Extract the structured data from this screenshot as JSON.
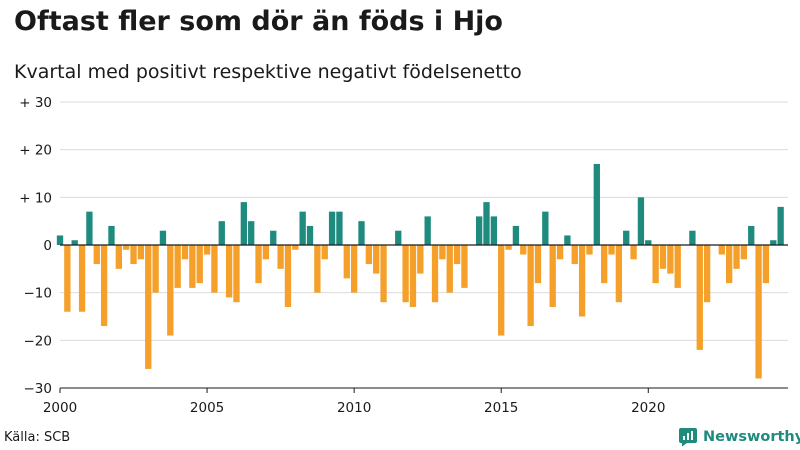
{
  "chart_data": {
    "type": "bar",
    "title": "Oftast fler som dör än föds i Hjo",
    "subtitle": "Kvartal med positivt respektive negativt födelsenetto",
    "xlabel": "",
    "ylabel": "",
    "ylim": [
      -30,
      30
    ],
    "y_ticks": [
      30,
      20,
      10,
      0,
      -10,
      -20,
      -30
    ],
    "y_tick_labels": [
      "+ 30",
      "+ 20",
      "+ 10",
      "0",
      "−10",
      "−20",
      "−30"
    ],
    "x_ticks": [
      2000,
      2005,
      2010,
      2015,
      2020
    ],
    "x_tick_labels": [
      "2000",
      "2005",
      "2010",
      "2015",
      "2020"
    ],
    "x_range": [
      2000,
      2024.75
    ],
    "start_year": 2000,
    "positive_color": "#1f8b7f",
    "negative_color": "#f4a02a",
    "grid": true,
    "values": [
      2,
      -14,
      1,
      -14,
      7,
      -4,
      -17,
      4,
      -5,
      -1,
      -4,
      -3,
      -26,
      -10,
      3,
      -19,
      -9,
      -3,
      -9,
      -8,
      -2,
      -10,
      5,
      -11,
      -12,
      9,
      5,
      -8,
      -3,
      3,
      -5,
      -13,
      -1,
      7,
      4,
      -10,
      -3,
      7,
      7,
      -7,
      -10,
      5,
      -4,
      -6,
      -12,
      0,
      3,
      -12,
      -13,
      -6,
      6,
      -12,
      -3,
      -10,
      -4,
      -9,
      0,
      6,
      9,
      6,
      -19,
      -1,
      4,
      -2,
      -17,
      -8,
      7,
      -13,
      -3,
      2,
      -4,
      -15,
      -2,
      17,
      -8,
      -2,
      -12,
      3,
      -3,
      10,
      1,
      -8,
      -5,
      -6,
      -9,
      0,
      3,
      -22,
      -12,
      0,
      -2,
      -8,
      -5,
      -3,
      4,
      -28,
      -8,
      1,
      8
    ]
  },
  "footer": {
    "source": "Källa: SCB",
    "brand": "Newsworthy"
  }
}
